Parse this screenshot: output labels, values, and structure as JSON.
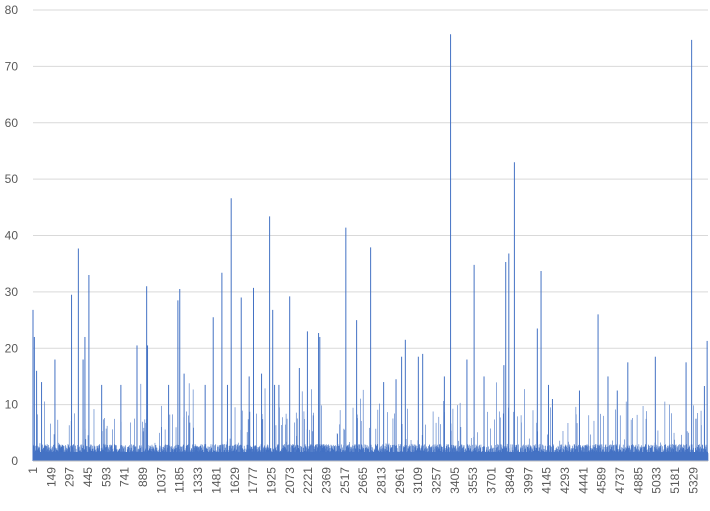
{
  "chart_data": {
    "type": "bar",
    "title": "",
    "xlabel": "",
    "ylabel": "",
    "ylim": [
      0,
      80
    ],
    "y_ticks": [
      0,
      10,
      20,
      30,
      40,
      50,
      60,
      70,
      80
    ],
    "x_range": [
      1,
      5447
    ],
    "x_tick_labels": [
      "1",
      "149",
      "297",
      "445",
      "593",
      "741",
      "889",
      "1037",
      "1185",
      "1333",
      "1481",
      "1629",
      "1777",
      "1925",
      "2073",
      "2221",
      "2369",
      "2517",
      "2665",
      "2813",
      "2961",
      "3109",
      "3257",
      "3405",
      "3553",
      "3701",
      "3849",
      "3997",
      "4145",
      "4293",
      "4441",
      "4589",
      "4737",
      "4885",
      "5033",
      "5181",
      "5329"
    ],
    "grid": "horizontal",
    "legend": "none",
    "series_color": "#4472c4",
    "baseline_typical_max": 3,
    "notable_peaks": [
      {
        "x": 1,
        "y": 26.8
      },
      {
        "x": 12,
        "y": 22
      },
      {
        "x": 30,
        "y": 16
      },
      {
        "x": 70,
        "y": 14
      },
      {
        "x": 178,
        "y": 18
      },
      {
        "x": 312,
        "y": 29.5
      },
      {
        "x": 367,
        "y": 37.7
      },
      {
        "x": 405,
        "y": 18
      },
      {
        "x": 420,
        "y": 22
      },
      {
        "x": 452,
        "y": 33
      },
      {
        "x": 555,
        "y": 13.5
      },
      {
        "x": 710,
        "y": 13.5
      },
      {
        "x": 840,
        "y": 20.5
      },
      {
        "x": 918,
        "y": 31
      },
      {
        "x": 925,
        "y": 20.5
      },
      {
        "x": 1095,
        "y": 13.5
      },
      {
        "x": 1170,
        "y": 28.5
      },
      {
        "x": 1185,
        "y": 30.5
      },
      {
        "x": 1220,
        "y": 15.5
      },
      {
        "x": 1390,
        "y": 13.5
      },
      {
        "x": 1455,
        "y": 25.5
      },
      {
        "x": 1525,
        "y": 33.4
      },
      {
        "x": 1570,
        "y": 13.5
      },
      {
        "x": 1600,
        "y": 46.6
      },
      {
        "x": 1681,
        "y": 29
      },
      {
        "x": 1745,
        "y": 15
      },
      {
        "x": 1780,
        "y": 30.7
      },
      {
        "x": 1845,
        "y": 15.5
      },
      {
        "x": 1910,
        "y": 43.4
      },
      {
        "x": 1935,
        "y": 26.8
      },
      {
        "x": 1950,
        "y": 13.5
      },
      {
        "x": 1985,
        "y": 13.5
      },
      {
        "x": 2072,
        "y": 29.2
      },
      {
        "x": 2150,
        "y": 16.5
      },
      {
        "x": 2215,
        "y": 23
      },
      {
        "x": 2305,
        "y": 22.7
      },
      {
        "x": 2315,
        "y": 22
      },
      {
        "x": 2525,
        "y": 41.4
      },
      {
        "x": 2612,
        "y": 25
      },
      {
        "x": 2725,
        "y": 37.9
      },
      {
        "x": 2830,
        "y": 14
      },
      {
        "x": 2930,
        "y": 14.5
      },
      {
        "x": 3005,
        "y": 21.5
      },
      {
        "x": 2975,
        "y": 18.5
      },
      {
        "x": 3110,
        "y": 18.5
      },
      {
        "x": 3145,
        "y": 19
      },
      {
        "x": 3320,
        "y": 15
      },
      {
        "x": 3370,
        "y": 75.7
      },
      {
        "x": 3502,
        "y": 18
      },
      {
        "x": 3560,
        "y": 34.8
      },
      {
        "x": 3640,
        "y": 15
      },
      {
        "x": 3800,
        "y": 17
      },
      {
        "x": 3815,
        "y": 35.3
      },
      {
        "x": 3840,
        "y": 36.8
      },
      {
        "x": 3885,
        "y": 53
      },
      {
        "x": 4070,
        "y": 23.5
      },
      {
        "x": 4100,
        "y": 33.7
      },
      {
        "x": 4160,
        "y": 13.5
      },
      {
        "x": 4192,
        "y": 11
      },
      {
        "x": 4410,
        "y": 12.5
      },
      {
        "x": 4560,
        "y": 26
      },
      {
        "x": 4640,
        "y": 15
      },
      {
        "x": 4715,
        "y": 12.5
      },
      {
        "x": 4800,
        "y": 17.5
      },
      {
        "x": 5022,
        "y": 18.5
      },
      {
        "x": 5270,
        "y": 17.5
      },
      {
        "x": 5315,
        "y": 74.7
      },
      {
        "x": 5350,
        "y": 7.5
      },
      {
        "x": 5418,
        "y": 13.3
      },
      {
        "x": 5440,
        "y": 21.3
      }
    ]
  }
}
